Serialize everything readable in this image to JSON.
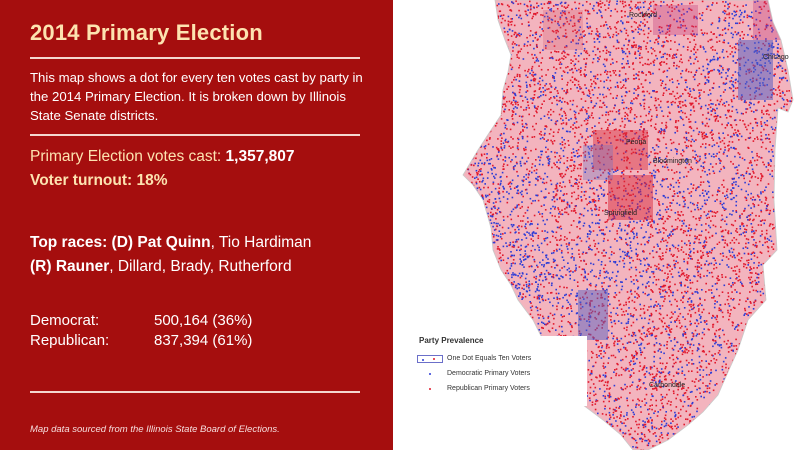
{
  "panel": {
    "title": "2014 Primary Election",
    "description": "This map shows a dot for every ten votes cast by party in the 2014 Primary Election. It is broken down by Illinois State Senate districts.",
    "votes_label": "Primary Election votes cast: ",
    "votes_value": "1,357,807",
    "turnout": "Voter turnout: 18%",
    "races_d_label": "Top races: (D) Pat Quinn",
    "races_d_rest": ", Tio Hardiman",
    "races_r_label": "(R) Rauner",
    "races_r_rest": ", Dillard, Brady, Rutherford",
    "results": [
      {
        "party": "Democrat:",
        "value": "500,164 (36%)"
      },
      {
        "party": "Republican:",
        "value": "837,394 (61%)"
      }
    ],
    "source": "Map data sourced from the Illinois State Board of Elections.",
    "bg_color": "#a50e0e",
    "accent_color": "#fde3b0"
  },
  "map": {
    "cities": [
      "Rockford",
      "Chicago",
      "Peoria",
      "Bloomington",
      "Springfield",
      "Carbondale"
    ],
    "colors": {
      "democrat": "#2b3bd6",
      "republican": "#e0182c"
    },
    "legend": {
      "title": "Party Prevalence",
      "items": [
        "One Dot Equals Ten Voters",
        "Democratic Primary Voters",
        "Republican Primary Voters"
      ]
    }
  }
}
